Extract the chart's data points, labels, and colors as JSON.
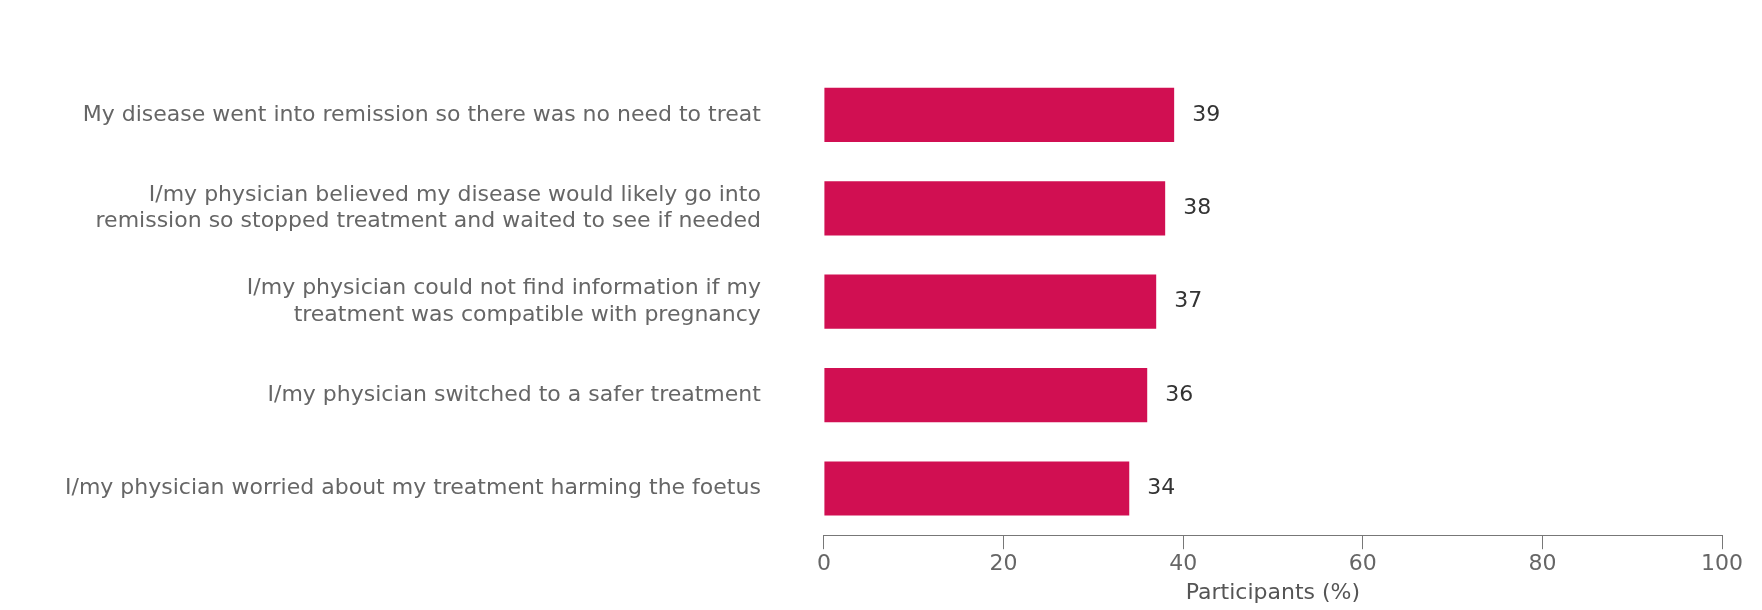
{
  "chart_data": {
    "type": "bar",
    "orientation": "horizontal",
    "categories": [
      "My disease went into remission so there was no need to treat",
      "I/my physician believed my disease would likely go into\nremission so stopped treatment and waited to see if needed",
      "I/my physician could not find information if my\ntreatment was compatible with pregnancy",
      "I/my physician switched to a safer treatment",
      "I/my physician worried about my treatment harming the foetus"
    ],
    "values": [
      39,
      38,
      37,
      36,
      34
    ],
    "color": "#d10f52",
    "data_labels": true,
    "xlabel": "Participants (%)",
    "xlim": [
      0,
      100
    ],
    "xticks": [
      0,
      20,
      40,
      60,
      80,
      100
    ],
    "grid": false,
    "legend": false
  }
}
